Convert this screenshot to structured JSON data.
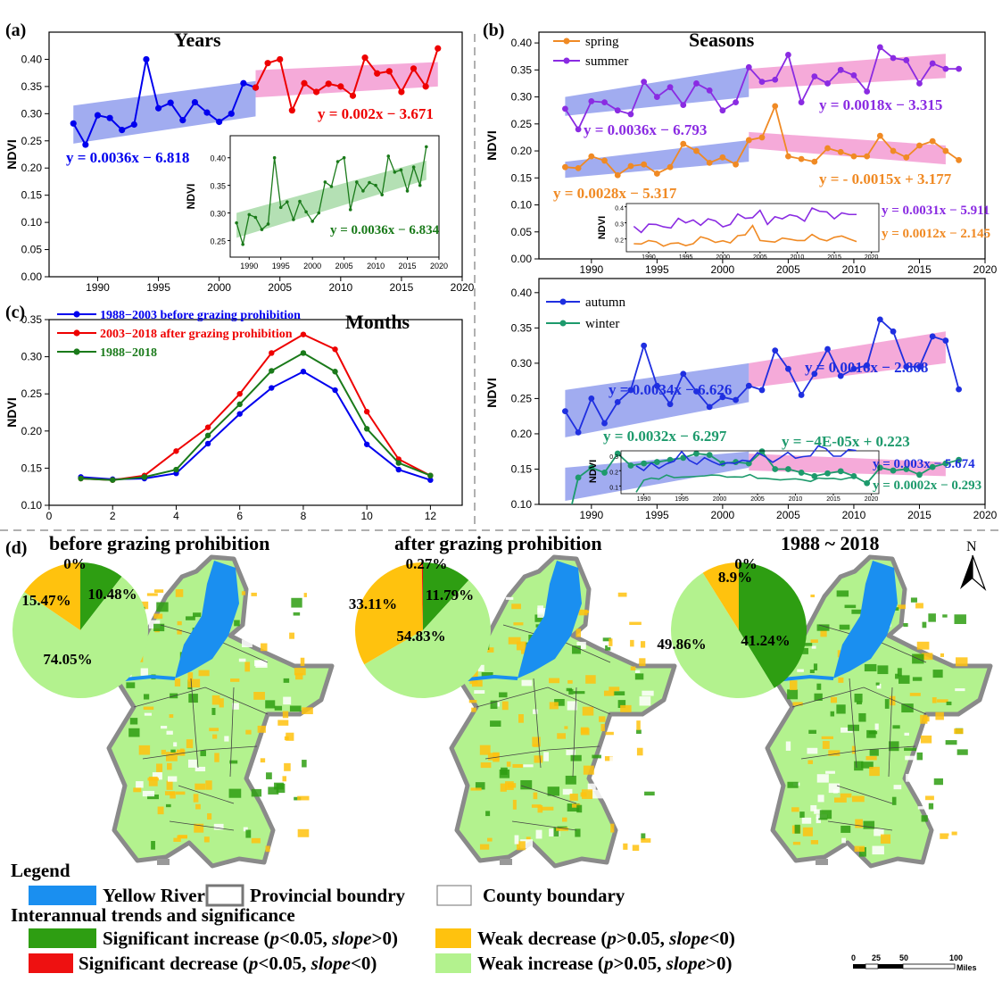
{
  "chart_data": [
    {
      "id": "a",
      "type": "line",
      "panel_label": "(a)",
      "title": "Years",
      "ylabel": "NDVI",
      "xlim": [
        1986,
        2020
      ],
      "ylim": [
        0.0,
        0.45
      ],
      "xticks": [
        "1990",
        "1995",
        "2000",
        "2005",
        "2010",
        "2015",
        "2020"
      ],
      "yticks": [
        "0.00",
        "0.05",
        "0.10",
        "0.15",
        "0.20",
        "0.25",
        "0.30",
        "0.35",
        "0.40"
      ],
      "series": [
        {
          "name": "1988-2003",
          "color": "#0000ee",
          "x": [
            1988,
            1989,
            1990,
            1991,
            1992,
            1993,
            1994,
            1995,
            1996,
            1997,
            1998,
            1999,
            2000,
            2001,
            2002,
            2003
          ],
          "values": [
            0.282,
            0.243,
            0.297,
            0.292,
            0.27,
            0.28,
            0.4,
            0.31,
            0.32,
            0.288,
            0.321,
            0.302,
            0.285,
            0.3,
            0.356,
            0.348
          ]
        },
        {
          "name": "2003-2018",
          "color": "#ee0000",
          "x": [
            2003,
            2004,
            2005,
            2006,
            2007,
            2008,
            2009,
            2010,
            2011,
            2012,
            2013,
            2014,
            2015,
            2016,
            2017,
            2018
          ],
          "values": [
            0.348,
            0.393,
            0.4,
            0.306,
            0.356,
            0.34,
            0.355,
            0.35,
            0.333,
            0.403,
            0.374,
            0.378,
            0.34,
            0.383,
            0.35,
            0.42
          ]
        }
      ],
      "trend_bands": [
        {
          "x": [
            1988,
            2003
          ],
          "y_lo": [
            0.245,
            0.295
          ],
          "y_hi": [
            0.315,
            0.36
          ],
          "color": "#6f7fe8"
        },
        {
          "x": [
            2003,
            2018
          ],
          "y_lo": [
            0.33,
            0.35
          ],
          "y_hi": [
            0.38,
            0.395
          ],
          "color": "#f07cc4"
        }
      ],
      "equations": [
        {
          "text": "y = 0.0036x − 6.818",
          "color": "#0000ee"
        },
        {
          "text": "y = 0.002x − 3.671",
          "color": "#ee0000"
        }
      ],
      "inset": {
        "ylabel": "NDVI",
        "xlim": [
          1987,
          2020
        ],
        "ylim": [
          0.22,
          0.44
        ],
        "xticks": [
          "1990",
          "1995",
          "2000",
          "2005",
          "2010",
          "2015",
          "2020"
        ],
        "yticks": [
          "0.25",
          "0.30",
          "0.35",
          "0.40"
        ],
        "color": "#1a7a1a",
        "equation": "y = 0.0036x − 6.834"
      }
    },
    {
      "id": "b",
      "type": "line",
      "panel_label": "(b)",
      "title": "Seasons",
      "ylabel": "NDVI",
      "xlim": [
        1986,
        2020
      ],
      "ylim": [
        0.0,
        0.42
      ],
      "xticks": [
        "1990",
        "1995",
        "2000",
        "2005",
        "2010",
        "2015",
        "2020"
      ],
      "yticks": [
        "0.00",
        "0.05",
        "0.10",
        "0.15",
        "0.20",
        "0.25",
        "0.30",
        "0.35",
        "0.40"
      ],
      "legend": [
        "spring",
        "summer"
      ],
      "series": [
        {
          "name": "spring",
          "color": "#f08a24",
          "x": [
            1988,
            1989,
            1990,
            1991,
            1992,
            1993,
            1994,
            1995,
            1996,
            1997,
            1998,
            1999,
            2000,
            2001,
            2002,
            2003,
            2004,
            2005,
            2006,
            2007,
            2008,
            2009,
            2010,
            2011,
            2012,
            2013,
            2014,
            2015,
            2016,
            2017,
            2018
          ],
          "values": [
            0.17,
            0.168,
            0.19,
            0.182,
            0.155,
            0.172,
            0.175,
            0.158,
            0.17,
            0.213,
            0.2,
            0.178,
            0.188,
            0.175,
            0.22,
            0.225,
            0.283,
            0.19,
            0.185,
            0.18,
            0.205,
            0.198,
            0.19,
            0.19,
            0.228,
            0.2,
            0.188,
            0.21,
            0.218,
            0.2,
            0.183
          ]
        },
        {
          "name": "summer",
          "color": "#8a2be2",
          "x": [
            1988,
            1989,
            1990,
            1991,
            1992,
            1993,
            1994,
            1995,
            1996,
            1997,
            1998,
            1999,
            2000,
            2001,
            2002,
            2003,
            2004,
            2005,
            2006,
            2007,
            2008,
            2009,
            2010,
            2011,
            2012,
            2013,
            2014,
            2015,
            2016,
            2017,
            2018
          ],
          "values": [
            0.278,
            0.24,
            0.292,
            0.29,
            0.275,
            0.268,
            0.328,
            0.3,
            0.318,
            0.285,
            0.325,
            0.312,
            0.275,
            0.29,
            0.355,
            0.328,
            0.332,
            0.378,
            0.29,
            0.338,
            0.325,
            0.35,
            0.34,
            0.31,
            0.392,
            0.372,
            0.368,
            0.325,
            0.362,
            0.352,
            0.352
          ]
        }
      ],
      "trend_bands": [
        {
          "x": [
            1988,
            2002
          ],
          "y_lo": [
            0.265,
            0.3
          ],
          "y_hi": [
            0.3,
            0.355
          ],
          "color": "#6f7fe8"
        },
        {
          "x": [
            2002,
            2017
          ],
          "y_lo": [
            0.315,
            0.335
          ],
          "y_hi": [
            0.352,
            0.38
          ],
          "color": "#f07cc4"
        },
        {
          "x": [
            1988,
            2002
          ],
          "y_lo": [
            0.15,
            0.18
          ],
          "y_hi": [
            0.18,
            0.22
          ],
          "color": "#6f7fe8"
        },
        {
          "x": [
            2002,
            2017
          ],
          "y_lo": [
            0.205,
            0.175
          ],
          "y_hi": [
            0.235,
            0.21
          ],
          "color": "#f07cc4"
        }
      ],
      "equations": [
        {
          "text": "y = 0.0036x − 6.793",
          "color": "#8a2be2"
        },
        {
          "text": "y = 0.0018x − 3.315",
          "color": "#8a2be2"
        },
        {
          "text": "y = 0.0028x − 5.317",
          "color": "#f08a24"
        },
        {
          "text": "y = - 0.0015x + 3.177",
          "color": "#f08a24"
        }
      ],
      "inset": {
        "ylabel": "NDVI",
        "xlim": [
          1987,
          2021
        ],
        "ylim": [
          0.12,
          0.42
        ],
        "xticks": [
          "1990",
          "1995",
          "2000",
          "2005",
          "2010",
          "2015",
          "2020"
        ],
        "yticks": [
          "0.2",
          "0.3",
          "0.4"
        ],
        "equations": [
          {
            "text": "y = 0.0031x − 5.911",
            "color": "#8a2be2"
          },
          {
            "text": "y = 0.0012x − 2.145",
            "color": "#f08a24"
          }
        ]
      }
    },
    {
      "id": "c",
      "type": "line",
      "panel_label": "(c)",
      "title": "Months",
      "ylabel": "NDVI",
      "xlim": [
        0,
        13
      ],
      "ylim": [
        0.1,
        0.35
      ],
      "xticks": [
        "0",
        "2",
        "4",
        "6",
        "8",
        "10",
        "12"
      ],
      "yticks": [
        "0.10",
        "0.15",
        "0.20",
        "0.25",
        "0.30",
        "0.35"
      ],
      "x": [
        1,
        2,
        3,
        4,
        5,
        6,
        7,
        8,
        9,
        10,
        11,
        12
      ],
      "series": [
        {
          "name": "1988−2003 before grazing prohibition",
          "color": "#0000ee",
          "values": [
            0.138,
            0.135,
            0.136,
            0.143,
            0.183,
            0.223,
            0.258,
            0.28,
            0.255,
            0.182,
            0.148,
            0.134
          ]
        },
        {
          "name": "2003−2018 after grazing prohibition",
          "color": "#ee0000",
          "values": [
            0.136,
            0.134,
            0.14,
            0.173,
            0.205,
            0.25,
            0.305,
            0.33,
            0.31,
            0.226,
            0.162,
            0.14
          ]
        },
        {
          "name": "1988−2018",
          "color": "#1a7a1a",
          "values": [
            0.136,
            0.134,
            0.138,
            0.148,
            0.194,
            0.236,
            0.281,
            0.305,
            0.28,
            0.203,
            0.157,
            0.14
          ]
        }
      ]
    },
    {
      "id": "b2",
      "type": "line",
      "ylabel": "NDVI",
      "xlim": [
        1986,
        2020
      ],
      "ylim": [
        0.1,
        0.42
      ],
      "xticks": [
        "1990",
        "1995",
        "2000",
        "2005",
        "2010",
        "2015",
        "2020"
      ],
      "yticks": [
        "0.10",
        "0.15",
        "0.20",
        "0.25",
        "0.30",
        "0.35",
        "0.40"
      ],
      "legend": [
        "autumn",
        "winter"
      ],
      "series": [
        {
          "name": "autumn",
          "color": "#1f2fe0",
          "x": [
            1988,
            1989,
            1990,
            1991,
            1992,
            1993,
            1994,
            1995,
            1996,
            1997,
            1998,
            1999,
            2000,
            2001,
            2002,
            2003,
            2004,
            2005,
            2006,
            2007,
            2008,
            2009,
            2010,
            2011,
            2012,
            2013,
            2014,
            2015,
            2016,
            2017,
            2018
          ],
          "values": [
            0.232,
            0.202,
            0.25,
            0.215,
            0.245,
            0.262,
            0.325,
            0.268,
            0.242,
            0.285,
            0.26,
            0.238,
            0.252,
            0.248,
            0.268,
            0.262,
            0.318,
            0.292,
            0.255,
            0.285,
            0.32,
            0.282,
            0.292,
            0.297,
            0.362,
            0.345,
            0.295,
            0.295,
            0.338,
            0.332,
            0.263
          ]
        },
        {
          "name": "winter",
          "color": "#1d9a6c",
          "x": [
            1988,
            1989,
            1990,
            1991,
            1992,
            1993,
            1994,
            1995,
            1996,
            1997,
            1998,
            1999,
            2000,
            2001,
            2002,
            2003,
            2004,
            2005,
            2006,
            2007,
            2008,
            2009,
            2010,
            2011,
            2012,
            2013,
            2014,
            2015,
            2016,
            2017,
            2018
          ],
          "values": [
            0.06,
            0.138,
            0.152,
            0.145,
            0.172,
            0.155,
            0.158,
            0.16,
            0.163,
            0.166,
            0.172,
            0.17,
            0.158,
            0.16,
            0.158,
            0.175,
            0.15,
            0.15,
            0.145,
            0.14,
            0.144,
            0.147,
            0.14,
            0.13,
            0.152,
            0.148,
            0.15,
            0.142,
            0.153,
            0.158,
            0.163
          ]
        }
      ],
      "trend_bands": [
        {
          "x": [
            1988,
            2002
          ],
          "y_lo": [
            0.195,
            0.245
          ],
          "y_hi": [
            0.262,
            0.3
          ],
          "color": "#6f7fe8"
        },
        {
          "x": [
            2002,
            2017
          ],
          "y_lo": [
            0.265,
            0.3
          ],
          "y_hi": [
            0.3,
            0.345
          ],
          "color": "#f07cc4"
        },
        {
          "x": [
            1988,
            2002
          ],
          "y_lo": [
            0.105,
            0.152
          ],
          "y_hi": [
            0.152,
            0.175
          ],
          "color": "#6f7fe8"
        },
        {
          "x": [
            2002,
            2017
          ],
          "y_lo": [
            0.148,
            0.14
          ],
          "y_hi": [
            0.172,
            0.16
          ],
          "color": "#f07cc4"
        }
      ],
      "equations": [
        {
          "text": "y = 0.0034x − 6.626",
          "color": "#1f2fe0"
        },
        {
          "text": "y = 0.0016x − 2.868",
          "color": "#1f2fe0"
        },
        {
          "text": "y = 0.0032x − 6.297",
          "color": "#1d9a6c"
        },
        {
          "text": "y = −4E-05x + 0.223",
          "color": "#1d9a6c"
        }
      ],
      "inset": {
        "ylabel": "NDVI",
        "xlim": [
          1987,
          2021
        ],
        "ylim": [
          0.05,
          0.33
        ],
        "xticks": [
          "1990",
          "1995",
          "2000",
          "2005",
          "2010",
          "2015",
          "2020"
        ],
        "yticks": [
          "0.1",
          "0.2",
          "0.3"
        ],
        "equations": [
          {
            "text": "y = 0.003x − 5.674",
            "color": "#1f2fe0"
          },
          {
            "text": "y = 0.0002x − 0.293",
            "color": "#1d9a6c"
          }
        ]
      }
    },
    {
      "id": "d",
      "type": "pie",
      "panel_label": "(d)",
      "north": "N",
      "maps": [
        {
          "title": "before grazing prohibition",
          "slices": [
            {
              "label": "10.48%",
              "value": 10.48,
              "color": "#2e9e12"
            },
            {
              "label": "74.05%",
              "value": 74.05,
              "color": "#b3f28e"
            },
            {
              "label": "15.47%",
              "value": 15.47,
              "color": "#ffc20e"
            },
            {
              "label": "0%",
              "value": 0,
              "color": "#ee1111"
            }
          ]
        },
        {
          "title": "after grazing prohibition",
          "slices": [
            {
              "label": "11.79%",
              "value": 11.79,
              "color": "#2e9e12"
            },
            {
              "label": "54.83%",
              "value": 54.83,
              "color": "#b3f28e"
            },
            {
              "label": "33.11%",
              "value": 33.11,
              "color": "#ffc20e"
            },
            {
              "label": "0.27%",
              "value": 0.27,
              "color": "#ee1111"
            }
          ]
        },
        {
          "title": "1988 ~ 2018",
          "slices": [
            {
              "label": "41.24%",
              "value": 41.24,
              "color": "#2e9e12"
            },
            {
              "label": "49.86%",
              "value": 49.86,
              "color": "#b3f28e"
            },
            {
              "label": "8.9%",
              "value": 8.9,
              "color": "#ffc20e"
            },
            {
              "label": "0%",
              "value": 0,
              "color": "#ee1111"
            }
          ]
        }
      ]
    }
  ],
  "legend": {
    "title": "Legend",
    "boundary_items": [
      "Yellow River",
      "Provincial boundry",
      "County boundary"
    ],
    "trend_title": "Interannual trends and significance",
    "items": [
      {
        "prefix": "Significant increase (",
        "p": "p",
        "mid": "<0.05, ",
        "slope": "slope",
        "suffix": ">0)",
        "color": "#2e9e12"
      },
      {
        "prefix": "Significant decrease (",
        "p": "p",
        "mid": "<0.05, ",
        "slope": "slope",
        "suffix": "<0)",
        "color": "#ee1111"
      },
      {
        "prefix": "Weak decrease (",
        "p": "p",
        "mid": ">0.05, ",
        "slope": "slope",
        "suffix": "<0)",
        "color": "#ffc20e"
      },
      {
        "prefix": "Weak increase (",
        "p": "p",
        "mid": ">0.05, ",
        "slope": "slope",
        "suffix": ">0)",
        "color": "#b3f28e"
      }
    ]
  },
  "scale_bar": {
    "ticks": [
      "0",
      "25",
      "50",
      "100"
    ],
    "unit": "Miles"
  }
}
